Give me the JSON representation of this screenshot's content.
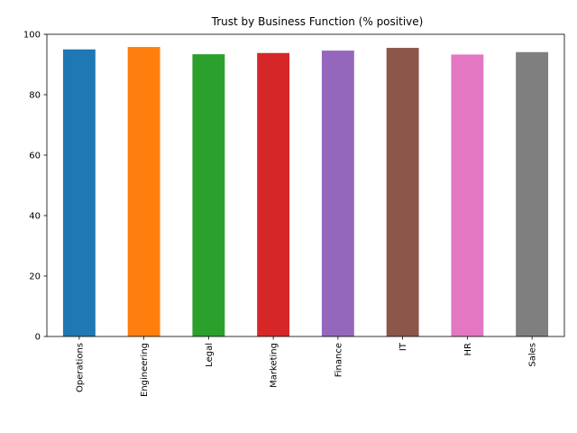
{
  "chart_data": {
    "type": "bar",
    "title": "Trust by Business Function (% positive)",
    "xlabel": "",
    "ylabel": "",
    "categories": [
      "Operations",
      "Engineering",
      "Legal",
      "Marketing",
      "Finance",
      "IT",
      "HR",
      "Sales"
    ],
    "values": [
      95.0,
      95.8,
      93.4,
      93.8,
      94.6,
      95.5,
      93.3,
      94.1
    ],
    "colors": [
      "#1f77b4",
      "#ff7f0e",
      "#2ca02c",
      "#d62728",
      "#9467bd",
      "#8c564b",
      "#e377c2",
      "#7f7f7f"
    ],
    "ylim": [
      0,
      100
    ],
    "yticks": [
      0,
      20,
      40,
      60,
      80,
      100
    ],
    "grid": false,
    "legend": "none"
  }
}
